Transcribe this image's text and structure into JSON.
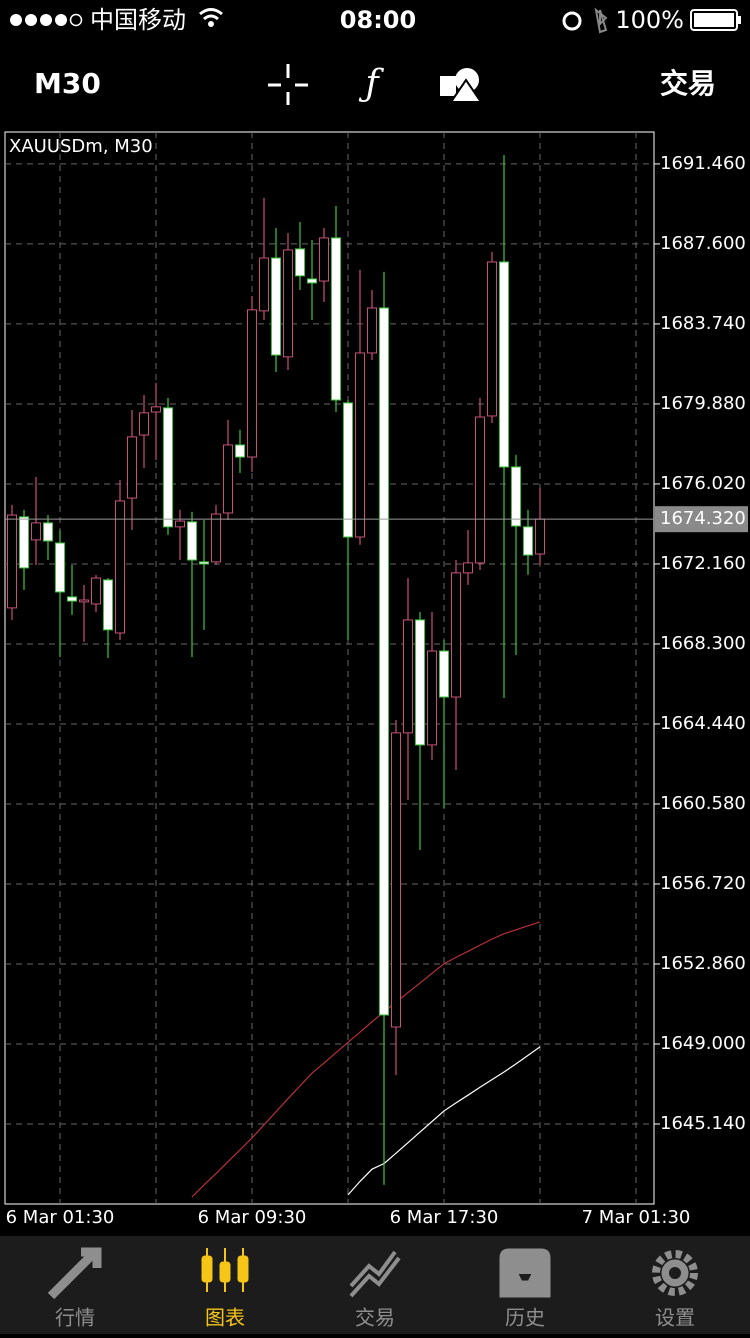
{
  "status_bar": {
    "carrier": "中国移动",
    "time": "08:00",
    "battery": "100%"
  },
  "toolbar": {
    "timeframe": "M30",
    "trade": "交易"
  },
  "chart_data": {
    "type": "candlestick",
    "title": "XAUUSDm, M30",
    "categories": [
      null,
      null,
      null,
      null,
      "6 Mar 01:30",
      null,
      null,
      null,
      null,
      null,
      null,
      null,
      null,
      null,
      null,
      null,
      null,
      null,
      null,
      null,
      "6 Mar 09:30",
      null,
      null,
      null,
      null,
      null,
      null,
      null,
      null,
      null,
      null,
      null,
      null,
      null,
      null,
      null,
      "6 Mar 17:30",
      null,
      null,
      null,
      null,
      null,
      null,
      null,
      null,
      null,
      null,
      null,
      null,
      null,
      null,
      null,
      "7 Mar 01:30"
    ],
    "open": [
      1670.04,
      1674.43,
      1673.32,
      1674.14,
      1673.17,
      1670.57,
      1670.33,
      1670.23,
      1671.39,
      1668.83,
      1675.34,
      1678.38,
      1679.49,
      1679.69,
      1673.95,
      1674.19,
      1672.26,
      1672.26,
      1674.62,
      1677.9,
      1677.32,
      1684.37,
      1686.92,
      1682.15,
      1687.36,
      1685.91,
      1685.81,
      1687.89,
      1679.93,
      1673.46,
      1682.34,
      1684.51,
      1649.82,
      1664.01,
      1669.46,
      1663.43,
      1667.96,
      1665.74,
      1671.73,
      1672.21,
      1679.3,
      1686.73,
      1676.84,
      1673.95,
      1672.64,
      null,
      null,
      null,
      null,
      null,
      null,
      null,
      null
    ],
    "high": [
      1675.01,
      1674.77,
      1676.36,
      1674.52,
      1673.8,
      1672.11,
      1671.15,
      1671.63,
      1671.48,
      1676.21,
      1679.59,
      1680.31,
      1680.89,
      1680.17,
      1674.77,
      1674.67,
      1674.28,
      1675.01,
      1679.11,
      1678.63,
      1685.09,
      1689.82,
      1688.37,
      1688.13,
      1688.66,
      1687.79,
      1688.37,
      1689.43,
      1680.07,
      1686.35,
      1685.38,
      1686.25,
      1664.63,
      1671.48,
      1669.84,
      1669.84,
      1668.49,
      1672.35,
      1673.8,
      1680.17,
      1687.21,
      1691.89,
      1677.42,
      1674.77,
      1675.83,
      null,
      null,
      null,
      null,
      null,
      null,
      null,
      null
    ],
    "low": [
      1669.46,
      1670.91,
      1672.11,
      1672.35,
      1667.67,
      1669.7,
      1668.4,
      1669.84,
      1667.62,
      1668.49,
      1673.8,
      1676.79,
      1677.18,
      1673.56,
      1672.35,
      1667.67,
      1668.98,
      1672.11,
      1674.28,
      1676.55,
      1676.6,
      1683.93,
      1681.42,
      1681.52,
      1685.38,
      1683.93,
      1684.8,
      1679.49,
      1668.49,
      1673.08,
      1682.0,
      1642.2,
      1647.5,
      1660.77,
      1658.36,
      1662.7,
      1660.39,
      1662.22,
      1671.15,
      1671.87,
      1678.96,
      1665.69,
      1667.77,
      1671.63,
      1672.11,
      null,
      null,
      null,
      null,
      null,
      null,
      null,
      null
    ],
    "close": [
      1674.52,
      1671.97,
      1674.14,
      1673.27,
      1670.81,
      1670.37,
      1670.42,
      1671.48,
      1668.98,
      1675.2,
      1678.29,
      1679.45,
      1679.74,
      1673.95,
      1674.23,
      1672.35,
      1672.16,
      1674.57,
      1677.9,
      1677.32,
      1684.42,
      1686.92,
      1682.24,
      1687.31,
      1686.06,
      1685.72,
      1687.89,
      1680.07,
      1673.46,
      1682.34,
      1684.51,
      1650.4,
      1664.01,
      1669.46,
      1663.43,
      1667.96,
      1665.74,
      1671.73,
      1672.21,
      1679.25,
      1686.73,
      1676.84,
      1673.99,
      1672.59,
      1674.32,
      null,
      null,
      null,
      null,
      null,
      null,
      null,
      null
    ],
    "up_color": "#c8507a",
    "down_color": "#ffffff",
    "down_wick_color": "#3cc83c",
    "ylim": [
      1641.28,
      1693.0
    ],
    "yticks": [
      {
        "value": 1691.46,
        "label": "1691.460"
      },
      {
        "value": 1687.6,
        "label": "1687.600"
      },
      {
        "value": 1683.74,
        "label": "1683.740"
      },
      {
        "value": 1679.88,
        "label": "1679.880"
      },
      {
        "value": 1676.02,
        "label": "1676.020"
      },
      {
        "value": 1672.16,
        "label": "1672.160"
      },
      {
        "value": 1668.3,
        "label": "1668.300"
      },
      {
        "value": 1664.44,
        "label": "1664.440"
      },
      {
        "value": 1660.58,
        "label": "1660.580"
      },
      {
        "value": 1656.72,
        "label": "1656.720"
      },
      {
        "value": 1652.86,
        "label": "1652.860"
      },
      {
        "value": 1649,
        "label": "1649.000"
      },
      {
        "value": 1645.14,
        "label": "1645.140"
      }
    ],
    "current_price": {
      "value": 1674.32,
      "label": "1674.320"
    },
    "grid": true,
    "moving_averages": [
      {
        "color": "#b8303a",
        "values": [
          null,
          null,
          null,
          null,
          null,
          null,
          null,
          null,
          null,
          null,
          null,
          null,
          null,
          null,
          null,
          1641.62,
          1642.2,
          1642.75,
          1643.32,
          1643.89,
          1644.47,
          1645.1,
          1645.73,
          1646.36,
          1646.98,
          1647.59,
          1648.08,
          1648.58,
          1649.08,
          1649.57,
          1650.07,
          1650.55,
          1651.02,
          1651.48,
          1651.94,
          1652.41,
          1652.87,
          1653.18,
          1653.47,
          1653.77,
          1654.06,
          1654.32,
          1654.51,
          1654.7,
          1654.89,
          null,
          null,
          null,
          null,
          null,
          null,
          null,
          null
        ]
      },
      {
        "color": "#ffffff",
        "values": [
          null,
          null,
          null,
          null,
          null,
          null,
          null,
          null,
          null,
          null,
          null,
          null,
          null,
          null,
          null,
          null,
          null,
          null,
          null,
          null,
          null,
          null,
          null,
          null,
          null,
          null,
          null,
          null,
          1641.72,
          1642.37,
          1642.96,
          1643.23,
          1643.73,
          1644.24,
          1644.75,
          1645.26,
          1645.77,
          1646.16,
          1646.53,
          1646.91,
          1647.28,
          1647.65,
          1648.04,
          1648.45,
          1648.86,
          null,
          null,
          null,
          null,
          null,
          null,
          null,
          null
        ]
      }
    ]
  },
  "tab_bar": {
    "tabs": [
      "行情",
      "图表",
      "交易",
      "历史",
      "设置"
    ],
    "active": 1,
    "active_color": "#f5c518",
    "color": "#8e8e8e"
  }
}
